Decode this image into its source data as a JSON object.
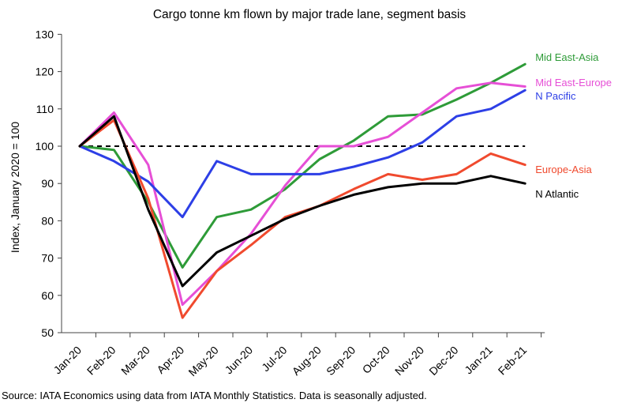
{
  "chart_data": {
    "type": "line",
    "title": "Cargo tonne km flown by major trade lane, segment basis",
    "xlabel": "",
    "ylabel": "Index, January 2020 = 100",
    "ylim": [
      50,
      130
    ],
    "yticks": [
      50,
      60,
      70,
      80,
      90,
      100,
      110,
      120,
      130
    ],
    "reference_line": 100,
    "categories": [
      "Jan-20",
      "Feb-20",
      "Mar-20",
      "Apr-20",
      "May-20",
      "Jun-20",
      "Jul-20",
      "Aug-20",
      "Sep-20",
      "Oct-20",
      "Nov-20",
      "Dec-20",
      "Jan-21",
      "Feb-21"
    ],
    "series": [
      {
        "name": "Mid East-Asia",
        "color": "#2e9b38",
        "values": [
          100,
          99,
          85,
          67.5,
          81,
          83,
          88.5,
          96.5,
          101.5,
          108,
          108.5,
          112.5,
          117,
          122
        ]
      },
      {
        "name": "Mid East-Europe",
        "color": "#e64fd6",
        "values": [
          100,
          109,
          95,
          57.5,
          66.5,
          76.5,
          89.5,
          100,
          100,
          102.5,
          109,
          115.5,
          117,
          116
        ]
      },
      {
        "name": "N Pacific",
        "color": "#2d3fe6",
        "values": [
          100,
          96,
          90.5,
          81,
          96,
          92.5,
          92.5,
          92.5,
          94.5,
          97,
          101,
          108,
          110,
          115
        ]
      },
      {
        "name": "Europe-Asia",
        "color": "#f04a2e",
        "values": [
          100,
          107,
          86,
          54,
          66.5,
          73.5,
          81,
          84,
          88.5,
          92.5,
          91,
          92.5,
          98,
          95
        ]
      },
      {
        "name": "N Atlantic",
        "color": "#000000",
        "values": [
          100,
          108,
          83,
          62.5,
          71.5,
          76,
          80.5,
          84,
          87,
          89,
          90,
          90,
          92,
          90
        ]
      }
    ],
    "grid": false
  },
  "source": "Source: IATA Economics using data from IATA Monthly Statistics. Data is seasonally adjusted."
}
